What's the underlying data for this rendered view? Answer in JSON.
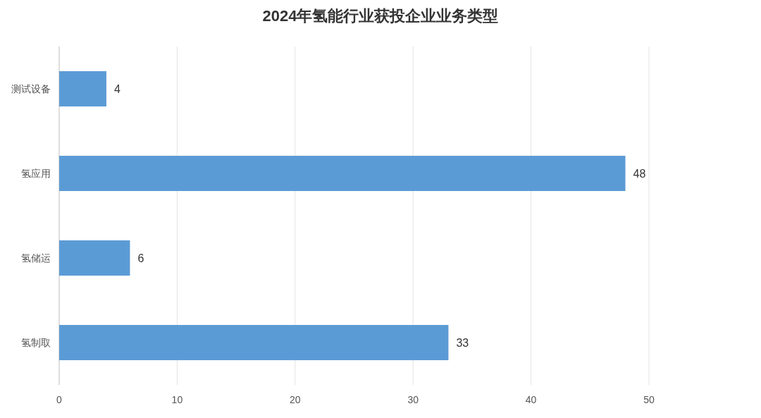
{
  "chart_data": {
    "type": "bar",
    "orientation": "horizontal",
    "title": "2024年氢能行业获投企业业务类型",
    "categories": [
      "测试设备",
      "氢应用",
      "氢储运",
      "氢制取"
    ],
    "values": [
      4,
      48,
      6,
      33
    ],
    "color": "#5b9bd5",
    "xlim": [
      0,
      50
    ],
    "xticks": [
      0,
      10,
      20,
      30,
      40,
      50
    ],
    "grid": "x",
    "data_labels": true
  }
}
